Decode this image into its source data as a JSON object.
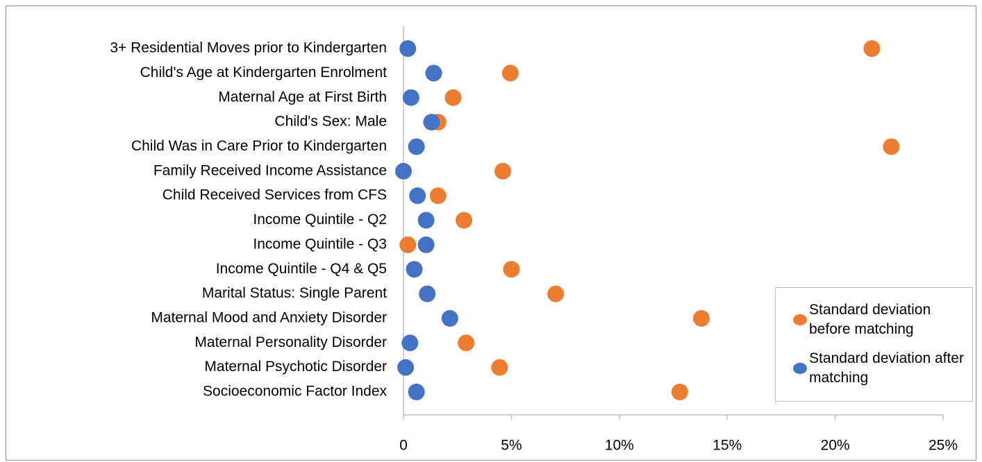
{
  "chart_data": {
    "type": "dot",
    "categories": [
      "3+ Residential Moves prior to Kindergarten",
      "Child's Age at Kindergarten Enrolment",
      "Maternal Age at First Birth",
      "Child's Sex: Male",
      "Child Was in Care Prior to Kindergarten",
      "Family Received Income Assistance",
      "Child Received Services from CFS",
      "Income Quintile - Q2",
      "Income Quintile - Q3",
      "Income Quintile - Q4 & Q5",
      "Marital Status: Single Parent",
      "Maternal Mood and Anxiety Disorder",
      "Maternal Personality Disorder",
      "Maternal Psychotic Disorder",
      "Socioeconomic Factor Index"
    ],
    "series": [
      {
        "name": "Standard deviation before matching",
        "color": "#ed7d31",
        "values": [
          21.7,
          4.95,
          2.3,
          1.6,
          22.6,
          4.6,
          1.6,
          2.8,
          0.2,
          5.0,
          7.05,
          13.8,
          2.9,
          4.45,
          12.8
        ]
      },
      {
        "name": "Standard deviation after matching",
        "color": "#4472c4",
        "values": [
          0.2,
          1.4,
          0.35,
          1.3,
          0.6,
          0.0,
          0.65,
          1.05,
          1.05,
          0.5,
          1.1,
          2.15,
          0.3,
          0.1,
          0.6
        ]
      }
    ],
    "xlim": [
      0,
      25
    ],
    "xticks": [
      0,
      {
        "value": 5,
        "label": "5%"
      },
      {
        "value": 10,
        "label": "10%"
      },
      {
        "value": 15,
        "label": "15%"
      },
      {
        "value": 20,
        "label": "20%"
      },
      {
        "value": 25,
        "label": "25%"
      }
    ],
    "grid": false,
    "legend": "lower right"
  }
}
